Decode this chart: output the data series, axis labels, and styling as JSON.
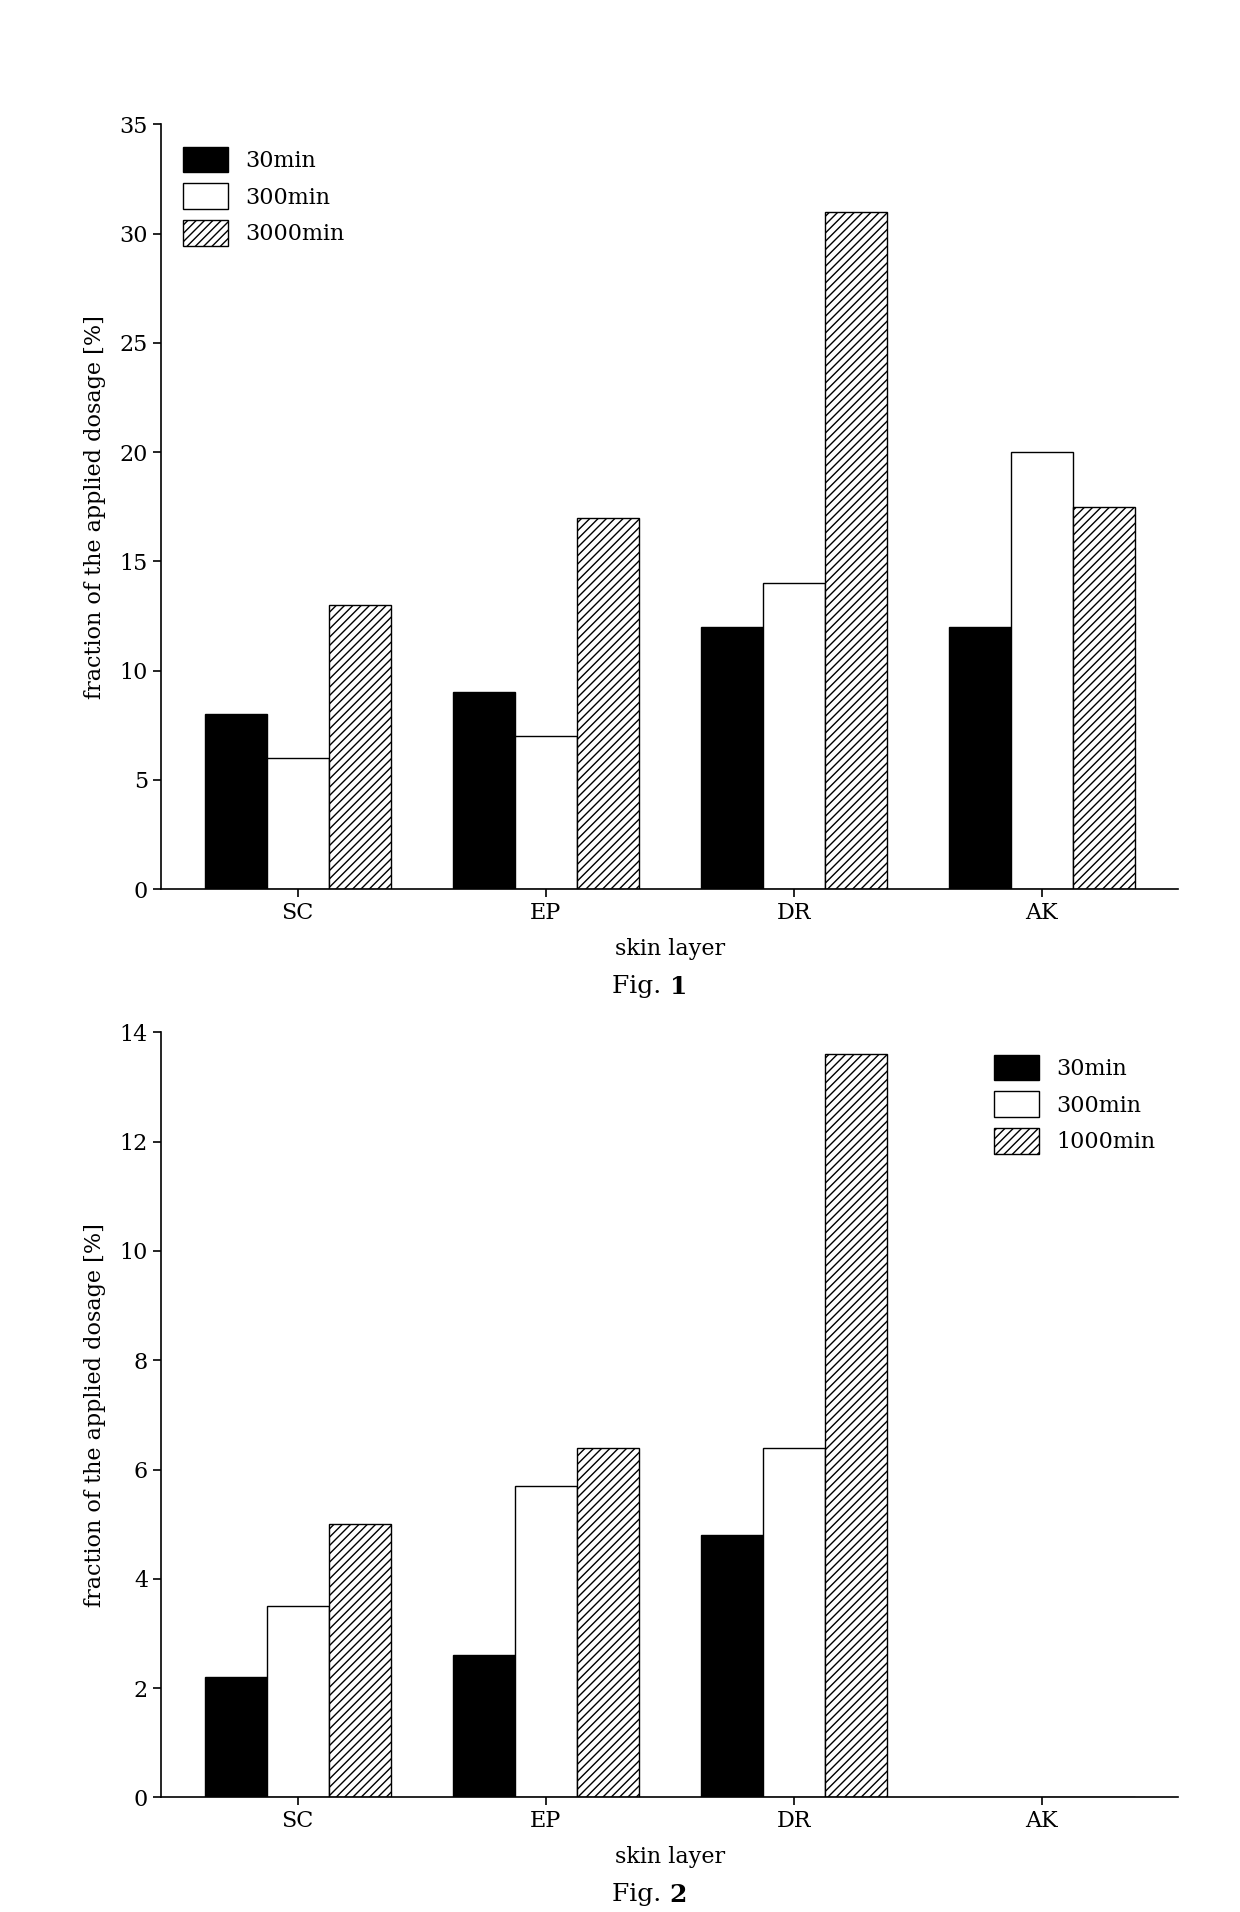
{
  "fig1": {
    "categories": [
      "SC",
      "EP",
      "DR",
      "AK"
    ],
    "series": [
      {
        "label": "30min",
        "values": [
          8.0,
          9.0,
          12.0,
          12.0
        ],
        "color": "#000000",
        "hatch": null
      },
      {
        "label": "300min",
        "values": [
          6.0,
          7.0,
          14.0,
          20.0
        ],
        "color": "#ffffff",
        "hatch": null
      },
      {
        "label": "3000min",
        "values": [
          13.0,
          17.0,
          31.0,
          17.5
        ],
        "color": "#ffffff",
        "hatch": "////"
      }
    ],
    "ylabel": "fraction of the applied dosage [%]",
    "xlabel": "skin layer",
    "ylim": [
      0,
      35
    ],
    "yticks": [
      0,
      5,
      10,
      15,
      20,
      25,
      30,
      35
    ],
    "caption_prefix": "Fig. ",
    "caption_num": "1"
  },
  "fig2": {
    "categories": [
      "SC",
      "EP",
      "DR",
      "AK"
    ],
    "series": [
      {
        "label": "30min",
        "values": [
          2.2,
          2.6,
          4.8,
          0.0
        ],
        "color": "#000000",
        "hatch": null
      },
      {
        "label": "300min",
        "values": [
          3.5,
          5.7,
          6.4,
          0.0
        ],
        "color": "#ffffff",
        "hatch": null
      },
      {
        "label": "1000min",
        "values": [
          5.0,
          6.4,
          13.6,
          0.0
        ],
        "color": "#ffffff",
        "hatch": "////"
      }
    ],
    "ylabel": "fraction of the applied dosage [%]",
    "xlabel": "skin layer",
    "ylim": [
      0,
      14
    ],
    "yticks": [
      0,
      2,
      4,
      6,
      8,
      10,
      12,
      14
    ],
    "caption_prefix": "Fig. ",
    "caption_num": "2"
  },
  "bar_width": 0.25,
  "background_color": "#ffffff",
  "axis_linewidth": 1.2,
  "tick_fontsize": 16,
  "label_fontsize": 16,
  "legend_fontsize": 16,
  "caption_fontsize": 18,
  "legend_loc1": "upper center",
  "legend_loc2": "upper right"
}
